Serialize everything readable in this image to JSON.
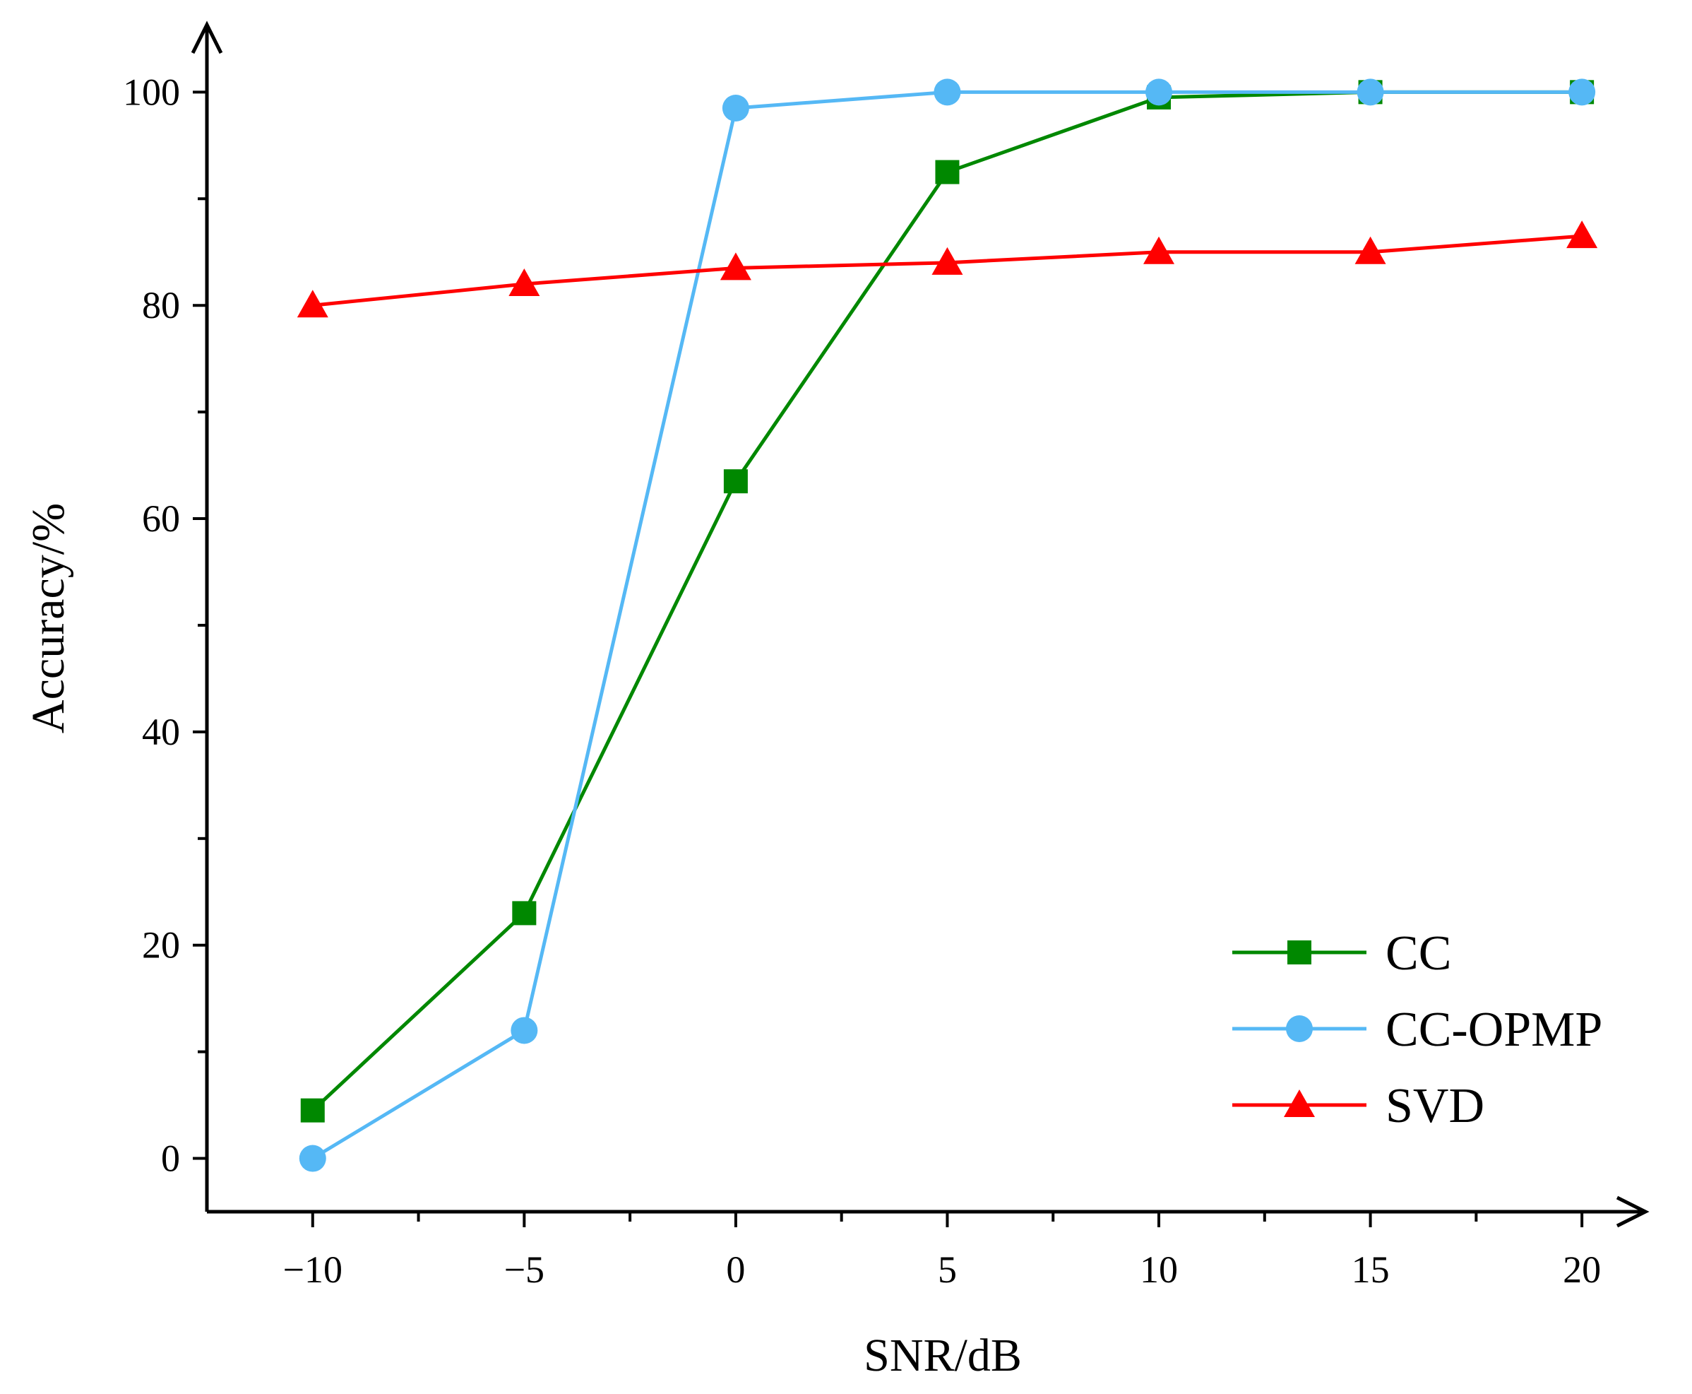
{
  "chart_data": {
    "type": "line",
    "xlabel": "SNR/dB",
    "ylabel": "Accuracy/%",
    "x": [
      -10,
      -5,
      0,
      5,
      10,
      15,
      20
    ],
    "x_tick_labels": [
      "−10",
      "−5",
      "0",
      "5",
      "10",
      "15",
      "20"
    ],
    "y_ticks": [
      0,
      20,
      40,
      60,
      80,
      100
    ],
    "y_tick_labels": [
      "0",
      "20",
      "40",
      "60",
      "80",
      "100"
    ],
    "xlim": [
      -12.5,
      21.5
    ],
    "ylim": [
      -5,
      104
    ],
    "grid": false,
    "legend_position": "bottom-right",
    "series": [
      {
        "name": "CC",
        "color": "#008800",
        "marker": "square",
        "values": [
          4.5,
          23,
          63.5,
          92.5,
          99.5,
          100,
          100
        ]
      },
      {
        "name": "CC-OPMP",
        "color": "#55b8f5",
        "marker": "circle",
        "values": [
          0,
          12,
          98.5,
          100,
          100,
          100,
          100
        ]
      },
      {
        "name": "SVD",
        "color": "#ff0000",
        "marker": "triangle",
        "values": [
          80,
          82,
          83.5,
          84,
          85,
          85,
          86.5
        ]
      }
    ]
  }
}
